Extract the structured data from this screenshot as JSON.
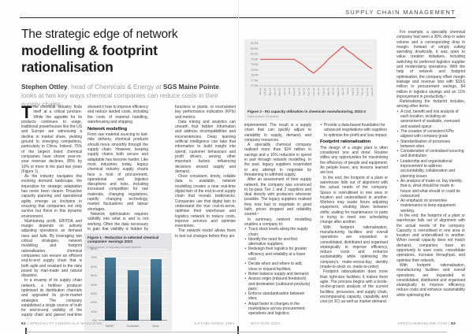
{
  "magazine": {
    "section_header": "SUPPLY CHAIN MANAGEMENT",
    "footer": {
      "left_page_number": "82",
      "divider": " | ",
      "left_magazine_name": "SPECIALITY CHEMICALS MAGAZINE",
      "established": "ESTABLISHED 1981",
      "issue_date": "MAY/JUN 2024",
      "website": "SPECCHEMONLINE.COM",
      "right_page_number": "83"
    }
  },
  "article": {
    "title_line1": "The strategic edge of network",
    "title_line2": "modelling & footprint",
    "title_line3": "rationalisation",
    "byline_parts": [
      {
        "text": "Stephen Ottley",
        "bold": true
      },
      {
        "text": ", head of Chemicals & Energy at ",
        "bold": false
      },
      {
        "text": "SGS Maine Pointe",
        "bold": true
      },
      {
        "text": ", looks at two key ways chemical companies can reduce costs in their supply chains",
        "bold": false
      }
    ],
    "columns": {
      "left1": [
        {
          "type": "dropcap",
          "dropcap": "T",
          "text": "he chemical industry finds itself at a critical juncture. While the appetite for its products continues to surge, traditional powerhouses like the US and Europe are witnessing a decline in market share, yielding ground to emerging competitors, particularly in China. Indeed, 75% of the largest listed chemical companies have shown year-on-year revenue declines, 85% by 10% or more in the past two years (Figure 1)."
        },
        {
          "type": "para",
          "text": "As the industry navigates this evolving demand landscape, the imperative for strategic adaptation has never been clearer. Proactive capacity planning and operational agility emerge as linchpins in ensuring that companies not only survive but thrive in this dynamic environment."
        },
        {
          "type": "para",
          "text": "Maintaining profit, EBITDA and margin depends on actively adjusting operations as demand rises and falls. By leveraging two critical strategies, network modelling and footprint rationalisation, chemical companies can ensure an efficient end-to-end supply chain that is both agile and resistant to the risks posed by man-made and natural disasters."
        },
        {
          "type": "para",
          "text": "In a revamp of its supply chain network, a fertiliser producer optimised its distribution channels and upgraded its go-to-market strategies. The company established a single source of truth for end-to-end visibility of the supply chain and gained real-time and long-term insight into inventory, capacity and logistical planning. Footprint rationalisation scenarios, including spatial analytics,"
        }
      ],
      "left2": [
        {
          "type": "para_flush",
          "text": "showed it how to improve efficiency and reduce landed costs, including the costs of material handling, warehousing and shipping."
        },
        {
          "type": "heading",
          "text": "Network modelling"
        },
        {
          "type": "para_flush",
          "text": "From raw material sourcing to last-mile delivery, chemical products should move smoothly through the supply chain. However, keeping supply chains both secure and adaptable has become harder. Like most industries today, legacy chemical industry supply chains face a host of procurement, operational and logistics disruptions and risks, including increased competition for raw materials, changing regulations, rapidly changing technology, market fluctuations and labour shortages."
        },
        {
          "type": "para",
          "text": "Network optimisation requires visibility into what is and is not working. Often the data necessary to gain that visibility is hidden by incompatible systems, siloed"
        }
      ],
      "left3": [
        {
          "type": "para_flush",
          "text": "functions or plants, or inconsistent key performance indicators (KPIs) and metrics."
        },
        {
          "type": "para",
          "text": "Data mining and analytics can unearth that hidden information and address incompatibilities and inconsistencies. Deep learning artificial intelligence can take that information to build insight into spend, customer behaviours and profit drivers, among other important factors influencing decisions around supply and demand."
        },
        {
          "type": "para",
          "text": "Once consistent, timely, reliable data is available, network modelling creates a near real-time digital twin of the end-to-end supply chain that reveals bottlenecks. Companies use that digital twin to understand the true cost-to-serve, optimise their warehouse and logistics network to reduce costs, improve services and optimise inventories."
        },
        {
          "type": "para",
          "text": "The network model allows them to test out changes before they are"
        }
      ],
      "right1": [
        {
          "type": "para_flush",
          "text": "implemented. The result is a supply chain that can quickly adjust to variability in supply, demand, and company resources."
        },
        {
          "type": "para",
          "text": "A speciality chemical company realised more than $24 million in savings and a 10% reduction in spend in part through network modelling. In the past, legacy suppliers responded to any attempt to negotiate by threatening to withhold supply."
        },
        {
          "type": "para",
          "text": "After an assessment of their supply network, the company was convinced to by-pass Tier 1 and 2 suppliers and deal directly with producers wherever possible. The legacy suppliers realised they now had to negotiate in good faith; prices dropped and reliability soared.¹"
        },
        {
          "type": "para",
          "text": "In summary, network modelling enables a company to:"
        },
        {
          "type": "bullets",
          "items": [
            "Track stock levels along the supply chain;",
            "Identify the need for and find alternative suppliers;",
            "Redesign their logistics for greater efficiency and reliability at a lower cost;",
            "Decide when and where to add, close or expand facilities;",
            "Better balance supply and demand;",
            "Assess origin (inbound feedstock) and destination (outbound products) pairs;",
            "Enforce standardisation between sites;",
            "Adapt faster to changes in the marketplace across procurement, operations and logistics;"
          ]
        }
      ],
      "right2": [
        {
          "type": "bullets",
          "items": [
            "Provide a data-based foundation for advanced negotiations with suppliers to optimise the profit and loss impact."
          ]
        },
        {
          "type": "heading",
          "text": "Footprint rationalisation"
        },
        {
          "type": "para_flush",
          "text": "The design of a single plant is often considered 'one and done'. Routine stifles any opportunities for maximising the efficiency of people and equipment. As people leave, any lessons learned are lost."
        },
        {
          "type": "para",
          "text": "In the end, the footprint of a plant or warehouse falls out of alignment with the actual needs of the company. Space is overutilised in one area or location and underutilised in another. Workers may waste hours adjusting equipment, shutting down between shifts, waiting for maintenance or parts or trying to meet one scheduling change after another."
        },
        {
          "type": "para",
          "text": "With footprint rationalisation, manufacturing facilities and overall operations are expanded or consolidated, distributed and organised strategically to improve efficiency, reduce costs and enhance sustainability while optimising the company's make-versus-buy identity (made-to-stock vs. made-to-order)."
        },
        {
          "type": "para",
          "text": "Footprint rationalisation does more than right-size facilities; it makes them agile. The process begins with a boots-on-the-ground analysis of the current facilities, processes, and supply chain, encompassing capacity, capability and cost (or 3C) as well as market demand."
        }
      ],
      "right3": [
        {
          "type": "para",
          "text": "For example, a speciality chemical company had seen a 30% drop in sales volume and a corresponding drop in margin. Instead of simply cutting spending drastically, it was open to value creation initiatives, including switching its preferred logistics supplier and modernising operations. With the help of network and footprint optimisation, the company offset margin leakage and revenue loss with $18.6 million in procurement savings, $4 million in logistics savings and an 11% improvement in productivity.¹"
        },
        {
          "type": "para",
          "text": "Rationalising the footprint includes, among other items:"
        },
        {
          "type": "bullets",
          "items": [
            "A cost, benefit and risk analysis of each location, including an assessment of available, overused and wasted space",
            "The creation of consistent KPIs aligned with company goals",
            "Standardisation of processes between sites",
            "Consideration of centralised sourcing and distribution",
            "Leadership and organisational improvement to address accountability, collaboration and planning issues",
            "An analysis of make vs. buy identity; that is, what should be made in-house and what should or could be outsourced",
            "An emphasis on preventive maintenance to keep equipment working."
          ]
        },
        {
          "type": "para",
          "text": "In the end, the footprint of a plant or warehouse falls out of alignment with the actual needs of the company. Capacity is overutilised in one area or location and underutilised in another. When overall capacity does not match demand, companies have an opportunity to save costs, consolidate operations, increase throughput, and optimise their network."
        },
        {
          "type": "para",
          "text": "With footprint rationalisation, manufacturing facilities and overall operations are expanded or consolidated, distributed and organised strategically to improve efficiency, reduce costs and enhance sustainability while optimising the"
        }
      ]
    }
  },
  "chart_data": [
    {
      "type": "bar",
      "title": "Figure 1 - Reduction in selected chemical companies' earnings 2023",
      "source_note": "Data source: Company annual reports",
      "categories": [
        "BASF",
        "Covestro",
        "Dow"
      ],
      "values": [
        70,
        56,
        69
      ],
      "xlabel": "",
      "ylabel": "",
      "ylim": [
        0,
        80
      ],
      "ytick_step": 10,
      "ytick_suffix": "%",
      "grid": true,
      "legend": "none",
      "bar_color_top": "#4a7d9b",
      "bar_color_bottom": "#1d3c4f",
      "panel_bg": "#ededee"
    },
    {
      "type": "line",
      "title": "Figure 2 - EU capacity utilisation in chemicals manufacturing, 2022-3",
      "source_note": "Data source: Eurostat",
      "x": [
        "Jan-22",
        "Feb-22",
        "Mar-22",
        "Apr-22",
        "May-22",
        "Jun-22",
        "Jul-22",
        "Aug-22",
        "Sep-22",
        "Oct-22",
        "Nov-22",
        "Dec-22",
        "Jan-23",
        "Feb-23",
        "Mar-23",
        "Apr-23",
        "May-23",
        "Jun-23",
        "Jul-23",
        "Aug-23",
        "Sep-23",
        "Oct-23",
        "Nov-23",
        "Dec-23"
      ],
      "values": [
        79.5,
        79.5,
        79.5,
        79.5,
        79.5,
        79.5,
        79.5,
        79.5,
        79.2,
        78.9,
        78.5,
        78.2,
        78.6,
        79.0,
        79.5,
        79.9,
        80.3,
        80.7,
        80.3,
        80.0,
        79.6,
        79.3,
        78.9,
        78.6
      ],
      "xlabel": "",
      "ylabel": "",
      "ylim": [
        77,
        81
      ],
      "ytick_step": 0.5,
      "ytick_suffix": "%",
      "grid": true,
      "legend": "none",
      "line_color": "#d9534f",
      "panel_bg": "#ededee"
    }
  ]
}
